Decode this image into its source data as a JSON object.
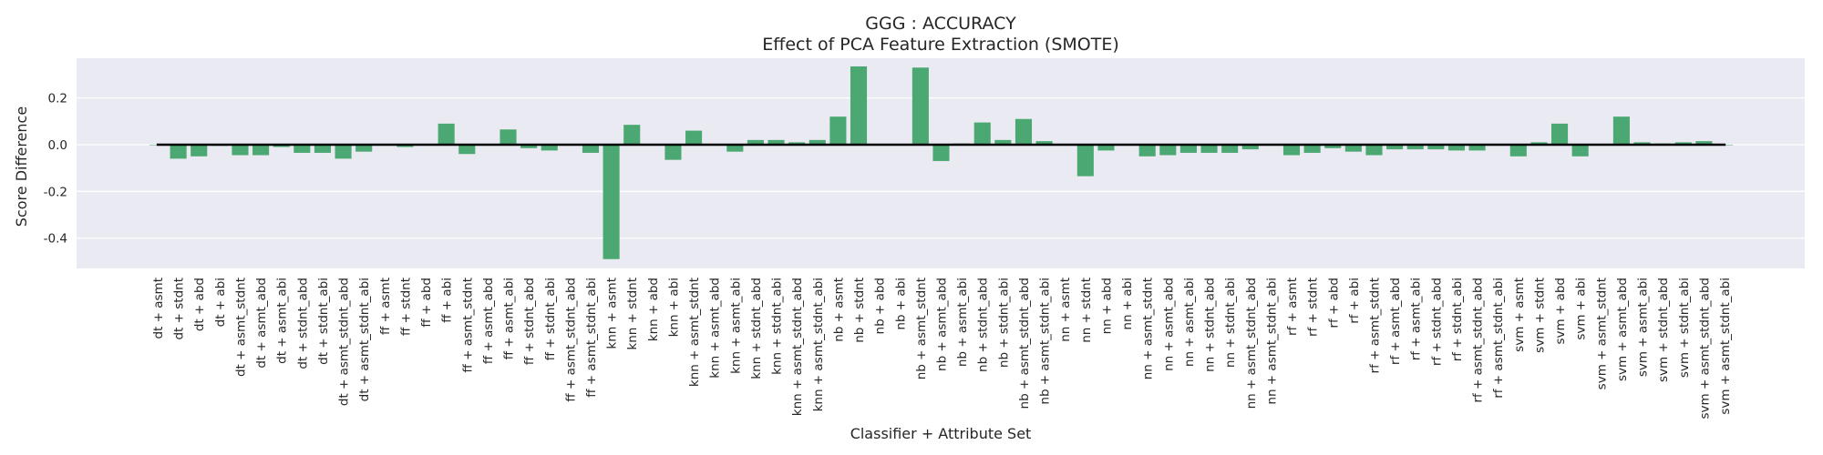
{
  "chart_data": {
    "type": "bar",
    "title": "GGG : ACCURACY",
    "subtitle": "Effect of PCA Feature Extraction (SMOTE)",
    "xlabel": "Classifier + Attribute Set",
    "ylabel": "Score Difference",
    "ylim": [
      -0.53,
      0.37
    ],
    "yticks": [
      -0.4,
      -0.2,
      0.0,
      0.2
    ],
    "ytick_labels": [
      "-0.4",
      "-0.2",
      "0.0",
      "0.2"
    ],
    "grid": true,
    "legend": "none",
    "colors": {
      "bar": "#4ca872",
      "plot_background": "#eaeaf2",
      "grid": "#ffffff",
      "zero_line": "#000000"
    },
    "categories": [
      "dt + asmt",
      "dt + stdnt",
      "dt + abd",
      "dt + abi",
      "dt + asmt_stdnt",
      "dt + asmt_abd",
      "dt + asmt_abi",
      "dt + stdnt_abd",
      "dt + stdnt_abi",
      "dt + asmt_stdnt_abd",
      "dt + asmt_stdnt_abi",
      "ff + asmt",
      "ff + stdnt",
      "ff + abd",
      "ff + abi",
      "ff + asmt_stdnt",
      "ff + asmt_abd",
      "ff + asmt_abi",
      "ff + stdnt_abd",
      "ff + stdnt_abi",
      "ff + asmt_stdnt_abd",
      "ff + asmt_stdnt_abi",
      "knn + asmt",
      "knn + stdnt",
      "knn + abd",
      "knn + abi",
      "knn + asmt_stdnt",
      "knn + asmt_abd",
      "knn + asmt_abi",
      "knn + stdnt_abd",
      "knn + stdnt_abi",
      "knn + asmt_stdnt_abd",
      "knn + asmt_stdnt_abi",
      "nb + asmt",
      "nb + stdnt",
      "nb + abd",
      "nb + abi",
      "nb + asmt_stdnt",
      "nb + asmt_abd",
      "nb + asmt_abi",
      "nb + stdnt_abd",
      "nb + stdnt_abi",
      "nb + asmt_stdnt_abd",
      "nb + asmt_stdnt_abi",
      "nn + asmt",
      "nn + stdnt",
      "nn + abd",
      "nn + abi",
      "nn + asmt_stdnt",
      "nn + asmt_abd",
      "nn + asmt_abi",
      "nn + stdnt_abd",
      "nn + stdnt_abi",
      "nn + asmt_stdnt_abd",
      "nn + asmt_stdnt_abi",
      "rf + asmt",
      "rf + stdnt",
      "rf + abd",
      "rf + abi",
      "rf + asmt_stdnt",
      "rf + asmt_abd",
      "rf + asmt_abi",
      "rf + stdnt_abd",
      "rf + stdnt_abi",
      "rf + asmt_stdnt_abd",
      "rf + asmt_stdnt_abi",
      "svm + asmt",
      "svm + stdnt",
      "svm + abd",
      "svm + abi",
      "svm + asmt_stdnt",
      "svm + asmt_abd",
      "svm + asmt_abi",
      "svm + stdnt_abd",
      "svm + stdnt_abi",
      "svm + asmt_stdnt_abd",
      "svm + asmt_stdnt_abi"
    ],
    "values": [
      0.0,
      -0.06,
      -0.05,
      -0.005,
      -0.045,
      -0.045,
      -0.01,
      -0.035,
      -0.035,
      -0.06,
      -0.03,
      0.0,
      -0.01,
      0.0,
      0.09,
      -0.04,
      0.0,
      0.065,
      -0.015,
      -0.025,
      0.0,
      -0.035,
      -0.49,
      0.085,
      0.0,
      -0.065,
      0.06,
      0.0,
      -0.03,
      0.02,
      0.02,
      0.01,
      0.02,
      0.12,
      0.335,
      0.0,
      0.0,
      0.33,
      -0.07,
      0.005,
      0.095,
      0.02,
      0.11,
      0.015,
      0.0,
      -0.135,
      -0.025,
      0.0,
      -0.05,
      -0.045,
      -0.035,
      -0.035,
      -0.035,
      -0.02,
      0.0,
      -0.045,
      -0.035,
      -0.015,
      -0.03,
      -0.045,
      -0.02,
      -0.02,
      -0.02,
      -0.025,
      -0.025,
      0.0,
      -0.05,
      0.01,
      0.09,
      -0.05,
      0.0,
      0.12,
      0.01,
      0.005,
      0.01,
      0.015,
      0.0
    ]
  }
}
